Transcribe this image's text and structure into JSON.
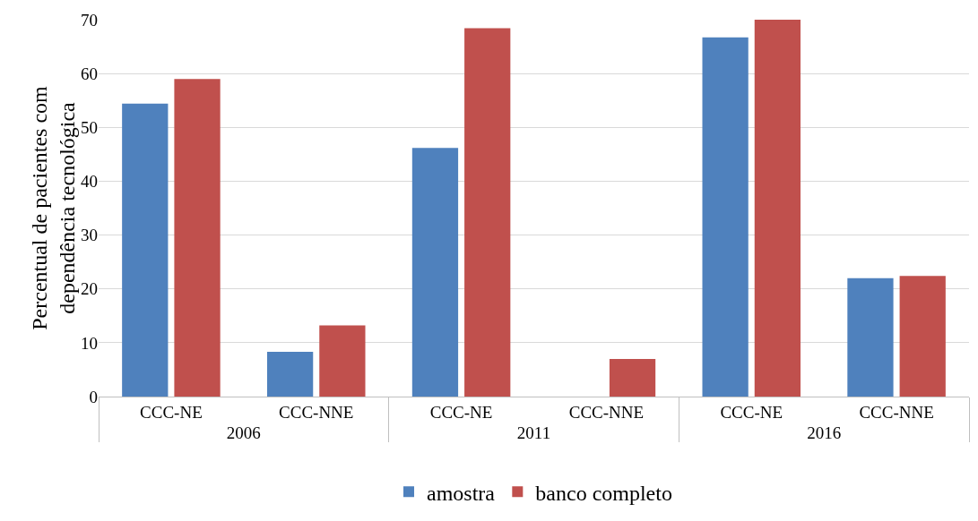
{
  "chart_data": {
    "type": "bar",
    "ylabel": "Percentual de pacientes com dependência tecnológica",
    "categories": [
      "CCC-NE",
      "CCC-NNE",
      "CCC-NE",
      "CCC-NNE",
      "CCC-NE",
      "CCC-NNE"
    ],
    "annotations": [
      "2006",
      "2011",
      "2016"
    ],
    "series": [
      {
        "name": "amostra",
        "color": "#4f81bd",
        "values": [
          54.4,
          8.3,
          46.2,
          null,
          66.7,
          22.0
        ]
      },
      {
        "name": "banco completo",
        "color": "#c0504d",
        "values": [
          59.0,
          13.2,
          68.4,
          7.0,
          70.0,
          22.4
        ]
      }
    ],
    "ylim": [
      0,
      70
    ],
    "yticks": [
      0,
      10,
      20,
      30,
      40,
      50,
      60,
      70
    ],
    "grid": "y",
    "legend": "bottom"
  }
}
